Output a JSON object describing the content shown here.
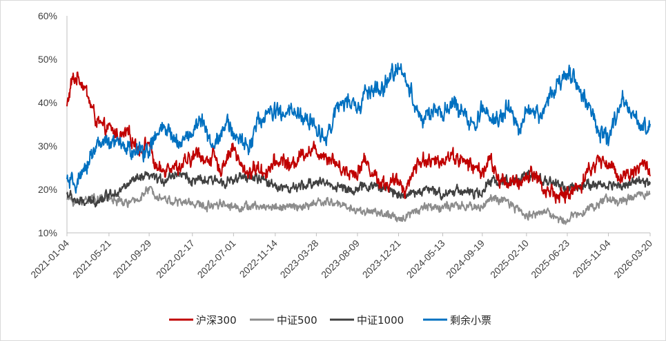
{
  "chart_data": {
    "type": "line",
    "title": "",
    "xlabel": "",
    "ylabel": "",
    "ylim": [
      0.1,
      0.6
    ],
    "y_ticks": [
      0.1,
      0.2,
      0.3,
      0.4,
      0.5,
      0.6
    ],
    "y_tick_labels": [
      "10%",
      "20%",
      "30%",
      "40%",
      "50%",
      "60%"
    ],
    "x_range": [
      "2021-01-04",
      "2026-03-20"
    ],
    "x_tick_labels": [
      "2021-01-04",
      "2021-05-21",
      "2021-09-29",
      "2022-02-17",
      "2022-07-01",
      "2022-11-14",
      "2023-03-28",
      "2023-08-09",
      "2023-12-21",
      "2024-05-13",
      "2024-09-19",
      "2025-02-10",
      "2025-06-23",
      "2025-11-04",
      "2026-03-20"
    ],
    "grid": false,
    "legend_position": "bottom",
    "series": [
      {
        "name": "沪深300",
        "color": "#C00000",
        "noise": 0.012,
        "x": [
          "2021-01-04",
          "2021-01-20",
          "2021-02-10",
          "2021-03-01",
          "2021-03-20",
          "2021-04-10",
          "2021-05-01",
          "2021-05-21",
          "2021-06-10",
          "2021-07-01",
          "2021-07-20",
          "2021-08-10",
          "2021-09-01",
          "2021-09-29",
          "2021-10-20",
          "2021-11-10",
          "2021-12-01",
          "2022-01-01",
          "2022-02-17",
          "2022-03-10",
          "2022-04-01",
          "2022-04-25",
          "2022-05-15",
          "2022-06-05",
          "2022-07-01",
          "2022-07-25",
          "2022-08-20",
          "2022-09-15",
          "2022-10-10",
          "2022-11-14",
          "2022-12-10",
          "2023-01-05",
          "2023-02-01",
          "2023-03-01",
          "2023-03-28",
          "2023-04-25",
          "2023-05-20",
          "2023-06-15",
          "2023-07-10",
          "2023-08-09",
          "2023-09-01",
          "2023-09-25",
          "2023-10-20",
          "2023-11-15",
          "2023-12-21",
          "2024-01-15",
          "2024-02-10",
          "2024-03-10",
          "2024-04-10",
          "2024-05-13",
          "2024-06-10",
          "2024-07-05",
          "2024-08-01",
          "2024-08-25",
          "2024-09-19",
          "2024-10-15",
          "2024-11-10",
          "2024-12-10",
          "2025-01-10",
          "2025-02-10",
          "2025-03-05",
          "2025-03-25",
          "2025-04-15",
          "2025-05-05",
          "2025-05-25",
          "2025-06-23",
          "2025-07-15",
          "2025-08-05",
          "2025-08-25",
          "2025-09-15",
          "2025-10-05",
          "2025-11-04",
          "2025-11-25",
          "2025-12-20",
          "2026-01-15",
          "2026-02-10",
          "2026-03-01",
          "2026-03-20"
        ],
        "values": [
          0.39,
          0.45,
          0.46,
          0.44,
          0.4,
          0.36,
          0.34,
          0.34,
          0.33,
          0.32,
          0.33,
          0.31,
          0.29,
          0.31,
          0.25,
          0.24,
          0.26,
          0.25,
          0.27,
          0.29,
          0.26,
          0.28,
          0.24,
          0.27,
          0.3,
          0.25,
          0.24,
          0.25,
          0.24,
          0.26,
          0.27,
          0.25,
          0.28,
          0.29,
          0.29,
          0.28,
          0.27,
          0.25,
          0.24,
          0.24,
          0.27,
          0.24,
          0.22,
          0.21,
          0.22,
          0.2,
          0.25,
          0.27,
          0.26,
          0.27,
          0.28,
          0.27,
          0.26,
          0.25,
          0.24,
          0.27,
          0.22,
          0.22,
          0.21,
          0.23,
          0.24,
          0.22,
          0.19,
          0.2,
          0.18,
          0.19,
          0.2,
          0.21,
          0.24,
          0.25,
          0.27,
          0.26,
          0.24,
          0.23,
          0.24,
          0.25,
          0.26,
          0.24
        ]
      },
      {
        "name": "中证500",
        "color": "#8C8C8C",
        "noise": 0.007,
        "x": [
          "2021-01-04",
          "2021-02-10",
          "2021-03-20",
          "2021-05-01",
          "2021-05-21",
          "2021-07-01",
          "2021-08-10",
          "2021-09-29",
          "2021-11-10",
          "2022-01-01",
          "2022-02-17",
          "2022-04-01",
          "2022-05-15",
          "2022-07-01",
          "2022-08-20",
          "2022-10-10",
          "2022-11-14",
          "2023-01-05",
          "2023-03-01",
          "2023-03-28",
          "2023-05-20",
          "2023-07-10",
          "2023-08-09",
          "2023-09-25",
          "2023-11-15",
          "2023-12-21",
          "2024-02-10",
          "2024-03-10",
          "2024-05-13",
          "2024-07-05",
          "2024-08-25",
          "2024-09-19",
          "2024-10-15",
          "2024-12-10",
          "2025-02-10",
          "2025-04-15",
          "2025-05-25",
          "2025-06-23",
          "2025-08-05",
          "2025-09-15",
          "2025-11-04",
          "2025-12-20",
          "2026-02-10",
          "2026-03-20"
        ],
        "values": [
          0.18,
          0.17,
          0.18,
          0.18,
          0.18,
          0.17,
          0.17,
          0.2,
          0.18,
          0.17,
          0.17,
          0.16,
          0.17,
          0.16,
          0.16,
          0.16,
          0.16,
          0.16,
          0.16,
          0.17,
          0.17,
          0.16,
          0.15,
          0.15,
          0.14,
          0.13,
          0.15,
          0.16,
          0.16,
          0.16,
          0.16,
          0.16,
          0.18,
          0.17,
          0.14,
          0.15,
          0.13,
          0.13,
          0.15,
          0.16,
          0.18,
          0.17,
          0.19,
          0.19
        ]
      },
      {
        "name": "中证1000",
        "color": "#404040",
        "noise": 0.008,
        "x": [
          "2021-01-04",
          "2021-02-10",
          "2021-03-20",
          "2021-05-01",
          "2021-05-21",
          "2021-07-01",
          "2021-08-10",
          "2021-09-29",
          "2021-11-10",
          "2022-01-01",
          "2022-02-17",
          "2022-04-01",
          "2022-05-15",
          "2022-07-01",
          "2022-08-20",
          "2022-10-10",
          "2022-11-14",
          "2023-01-05",
          "2023-03-01",
          "2023-03-28",
          "2023-05-20",
          "2023-07-10",
          "2023-08-09",
          "2023-09-25",
          "2023-11-15",
          "2023-12-21",
          "2024-02-10",
          "2024-03-10",
          "2024-05-13",
          "2024-07-05",
          "2024-08-25",
          "2024-09-19",
          "2024-10-15",
          "2024-12-10",
          "2025-02-10",
          "2025-04-15",
          "2025-05-25",
          "2025-06-23",
          "2025-08-05",
          "2025-09-15",
          "2025-11-04",
          "2025-12-20",
          "2026-02-10",
          "2026-03-20"
        ],
        "values": [
          0.19,
          0.17,
          0.17,
          0.18,
          0.19,
          0.2,
          0.22,
          0.23,
          0.22,
          0.24,
          0.22,
          0.22,
          0.22,
          0.22,
          0.23,
          0.22,
          0.21,
          0.2,
          0.21,
          0.22,
          0.21,
          0.2,
          0.2,
          0.21,
          0.2,
          0.19,
          0.19,
          0.2,
          0.19,
          0.2,
          0.19,
          0.19,
          0.22,
          0.22,
          0.23,
          0.22,
          0.21,
          0.2,
          0.21,
          0.21,
          0.21,
          0.21,
          0.22,
          0.21
        ]
      },
      {
        "name": "剩余小票",
        "color": "#0070C0",
        "noise": 0.014,
        "x": [
          "2021-01-04",
          "2021-01-20",
          "2021-02-10",
          "2021-03-01",
          "2021-03-20",
          "2021-04-10",
          "2021-05-01",
          "2021-05-21",
          "2021-06-10",
          "2021-07-01",
          "2021-07-20",
          "2021-08-10",
          "2021-09-01",
          "2021-09-29",
          "2021-10-20",
          "2021-11-10",
          "2021-12-01",
          "2022-01-01",
          "2022-02-17",
          "2022-03-10",
          "2022-04-01",
          "2022-04-25",
          "2022-05-15",
          "2022-06-05",
          "2022-07-01",
          "2022-07-25",
          "2022-08-20",
          "2022-09-15",
          "2022-10-10",
          "2022-11-14",
          "2022-12-10",
          "2023-01-05",
          "2023-02-01",
          "2023-03-01",
          "2023-03-28",
          "2023-04-25",
          "2023-05-20",
          "2023-06-15",
          "2023-07-10",
          "2023-08-09",
          "2023-09-01",
          "2023-09-25",
          "2023-10-20",
          "2023-11-15",
          "2023-12-21",
          "2024-01-15",
          "2024-02-10",
          "2024-03-10",
          "2024-04-10",
          "2024-05-13",
          "2024-06-10",
          "2024-07-05",
          "2024-08-01",
          "2024-08-25",
          "2024-09-19",
          "2024-10-15",
          "2024-11-10",
          "2024-12-10",
          "2025-01-10",
          "2025-02-10",
          "2025-03-05",
          "2025-03-25",
          "2025-04-15",
          "2025-05-05",
          "2025-05-25",
          "2025-06-23",
          "2025-07-15",
          "2025-08-05",
          "2025-08-25",
          "2025-09-15",
          "2025-10-05",
          "2025-11-04",
          "2025-11-25",
          "2025-12-20",
          "2026-01-15",
          "2026-02-10",
          "2026-03-01",
          "2026-03-20"
        ],
        "values": [
          0.22,
          0.21,
          0.22,
          0.23,
          0.28,
          0.3,
          0.31,
          0.3,
          0.31,
          0.3,
          0.3,
          0.28,
          0.29,
          0.29,
          0.32,
          0.34,
          0.33,
          0.31,
          0.33,
          0.36,
          0.34,
          0.3,
          0.33,
          0.35,
          0.33,
          0.31,
          0.3,
          0.35,
          0.37,
          0.38,
          0.37,
          0.38,
          0.37,
          0.36,
          0.34,
          0.32,
          0.36,
          0.4,
          0.4,
          0.38,
          0.42,
          0.43,
          0.42,
          0.45,
          0.48,
          0.46,
          0.4,
          0.36,
          0.38,
          0.37,
          0.4,
          0.38,
          0.37,
          0.33,
          0.39,
          0.37,
          0.36,
          0.39,
          0.34,
          0.37,
          0.38,
          0.37,
          0.4,
          0.42,
          0.44,
          0.48,
          0.46,
          0.43,
          0.4,
          0.37,
          0.33,
          0.31,
          0.36,
          0.4,
          0.38,
          0.35,
          0.34,
          0.36
        ]
      }
    ]
  }
}
